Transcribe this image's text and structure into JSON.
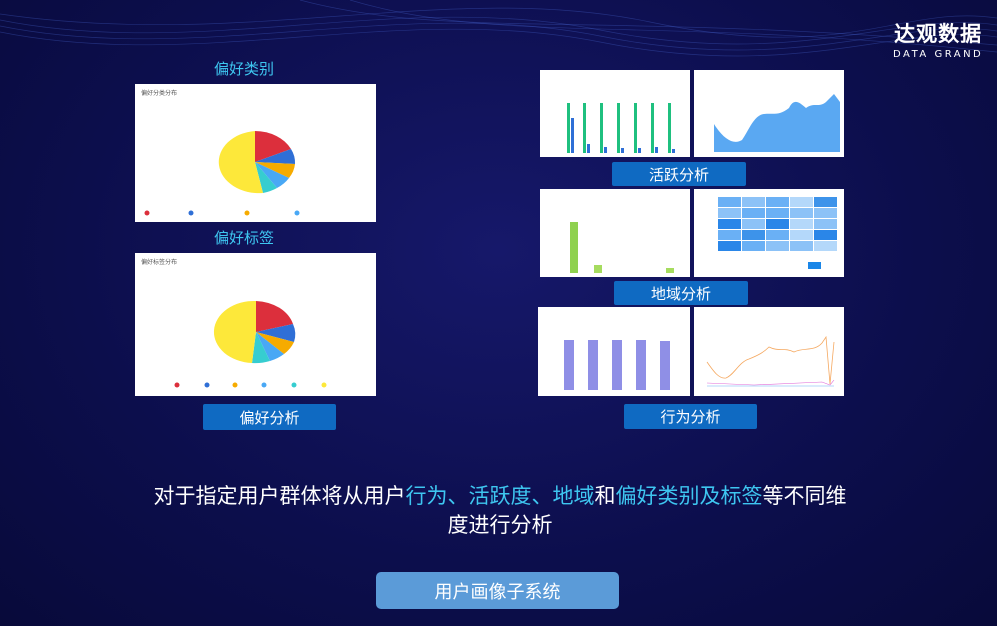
{
  "logo": {
    "cn": "达观数据",
    "en": "DATA GRAND"
  },
  "sections": {
    "pref_category": "偏好类别",
    "pref_tag": "偏好标签"
  },
  "cards": {
    "pie1_title": "偏好分类分布",
    "pie2_title": "偏好标签分布"
  },
  "buttons": {
    "preference": "偏好分析",
    "activity": "活跃分析",
    "region": "地域分析",
    "behavior": "行为分析"
  },
  "description": {
    "p1": "对于指定用户群体将从用户",
    "h1": "行为、活跃度、地域",
    "p2": "和",
    "h2": "偏好类别及标签",
    "p3": "等不同维度进行分析"
  },
  "system_button": "用户画像子系统",
  "colors": {
    "accent": "#3ec6f0",
    "button": "#0f6ac2",
    "pie": [
      "#dc2f3c",
      "#2f6fd6",
      "#f6ab00",
      "#49a8f5",
      "#36cdd0",
      "#fde83a"
    ]
  }
}
